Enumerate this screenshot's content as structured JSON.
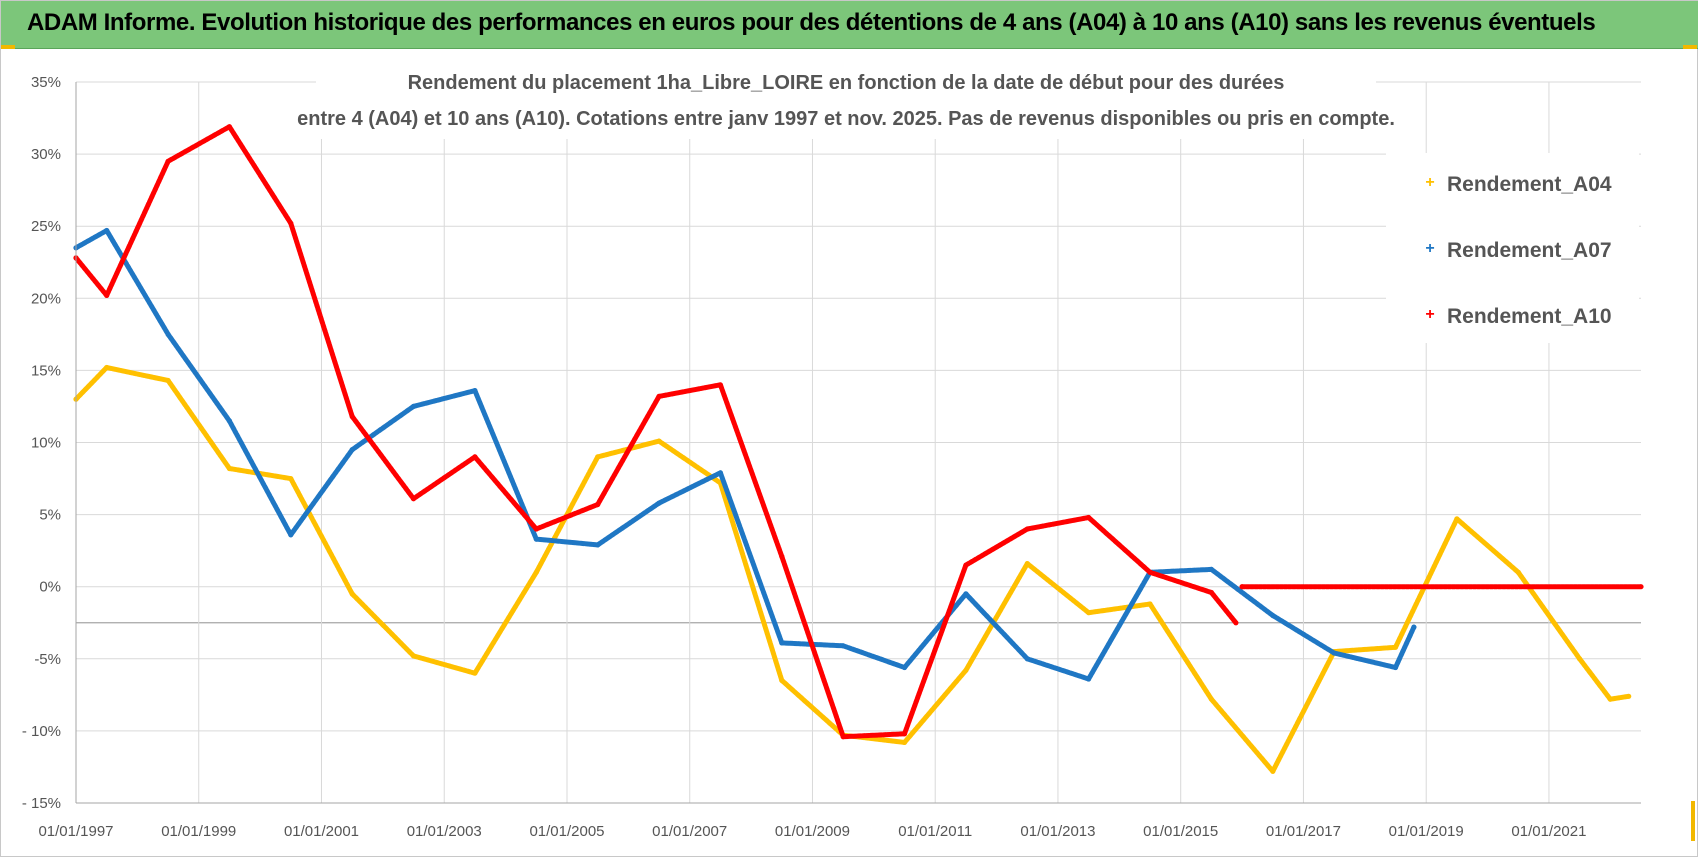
{
  "banner": {
    "title": "ADAM Informe. Evolution historique des performances en euros pour des détentions de 4 ans (A04) à 10 ans (A10) sans les revenus éventuels",
    "color": "#7cc67a"
  },
  "chart_data": {
    "type": "line",
    "title_line1": "Rendement du placement 1ha_Libre_LOIRE en fonction de la date de début pour des durées",
    "title_line2": "entre 4 (A04) et 10 ans (A10). Cotations entre janv 1997 et nov. 2025. Pas de revenus disponibles ou pris en compte.",
    "xlabel": "",
    "ylabel": "",
    "xlim": [
      1997.0,
      2022.5
    ],
    "ylim": [
      -15,
      35
    ],
    "x_ticks": [
      {
        "value": 1997,
        "label": "01/01/1997"
      },
      {
        "value": 1999,
        "label": "01/01/1999"
      },
      {
        "value": 2001,
        "label": "01/01/2001"
      },
      {
        "value": 2003,
        "label": "01/01/2003"
      },
      {
        "value": 2005,
        "label": "01/01/2005"
      },
      {
        "value": 2007,
        "label": "01/01/2007"
      },
      {
        "value": 2009,
        "label": "01/01/2009"
      },
      {
        "value": 2011,
        "label": "01/01/2011"
      },
      {
        "value": 2013,
        "label": "01/01/2013"
      },
      {
        "value": 2015,
        "label": "01/01/2015"
      },
      {
        "value": 2017,
        "label": "01/01/2017"
      },
      {
        "value": 2019,
        "label": "01/01/2019"
      },
      {
        "value": 2021,
        "label": "01/01/2021"
      }
    ],
    "y_ticks": [
      {
        "value": 35,
        "label": "35%"
      },
      {
        "value": 30,
        "label": "30%"
      },
      {
        "value": 25,
        "label": "25%"
      },
      {
        "value": 20,
        "label": "20%"
      },
      {
        "value": 15,
        "label": "15%"
      },
      {
        "value": 10,
        "label": "10%"
      },
      {
        "value": 5,
        "label": "5%"
      },
      {
        "value": 0,
        "label": "0%"
      },
      {
        "value": -5,
        "label": "-5%"
      },
      {
        "value": -10,
        "label": "- 10%"
      },
      {
        "value": -15,
        "label": "- 15%"
      }
    ],
    "extra_gridline": -2.5,
    "series": [
      {
        "name": "Rendement_A04",
        "color": "#ffc000",
        "x": [
          1997.0,
          1997.5,
          1998.5,
          1999.5,
          2000.5,
          2001.5,
          2002.5,
          2003.5,
          2004.5,
          2005.5,
          2006.5,
          2007.5,
          2008.5,
          2009.5,
          2010.5,
          2011.5,
          2012.5,
          2013.5,
          2014.5,
          2015.5,
          2016.5,
          2017.5,
          2018.5,
          2019.5,
          2020.5,
          2021.5,
          2022.0,
          2022.3
        ],
        "y": [
          13.0,
          15.2,
          14.3,
          8.2,
          7.5,
          -0.5,
          -4.8,
          -6.0,
          1.0,
          9.0,
          10.1,
          7.2,
          -6.5,
          -10.3,
          -10.8,
          -5.8,
          1.6,
          -1.8,
          -1.2,
          -7.8,
          -12.8,
          -4.5,
          -4.2,
          4.7,
          1.0,
          -5.0,
          -7.8,
          -7.6
        ]
      },
      {
        "name": "Rendement_A07",
        "color": "#1f77c4",
        "x": [
          1997.0,
          1997.5,
          1998.5,
          1999.5,
          2000.5,
          2001.5,
          2002.5,
          2003.5,
          2004.5,
          2005.5,
          2006.5,
          2007.5,
          2008.5,
          2009.5,
          2010.5,
          2011.5,
          2012.5,
          2013.5,
          2014.5,
          2015.5,
          2016.5,
          2017.5,
          2018.5,
          2018.8
        ],
        "y": [
          23.5,
          24.7,
          17.5,
          11.5,
          3.6,
          9.5,
          12.5,
          13.6,
          3.3,
          2.9,
          5.8,
          7.9,
          -3.9,
          -4.1,
          -5.6,
          -0.5,
          -5.0,
          -6.4,
          1.0,
          1.2,
          -2.0,
          -4.6,
          -5.6,
          -2.8
        ]
      },
      {
        "name": "Rendement_A10",
        "color": "#ff0000",
        "x": [
          1997.0,
          1997.5,
          1998.5,
          1999.5,
          2000.5,
          2001.5,
          2002.5,
          2003.5,
          2004.5,
          2005.5,
          2006.5,
          2007.5,
          2008.5,
          2009.5,
          2010.5,
          2011.5,
          2012.5,
          2013.5,
          2014.5,
          2015.5,
          2015.9
        ],
        "y": [
          22.8,
          20.2,
          29.5,
          31.9,
          25.2,
          11.8,
          6.1,
          9.0,
          4.0,
          5.7,
          13.2,
          14.0,
          2.1,
          -10.4,
          -10.2,
          1.5,
          4.0,
          4.8,
          1.0,
          -0.4,
          -2.5
        ]
      },
      {
        "name": "",
        "color": "#ff0000",
        "x": [
          2016.0,
          2022.5
        ],
        "y": [
          0.0,
          0.0
        ]
      }
    ],
    "legend": {
      "position": "right",
      "entries": [
        "Rendement_A04",
        "Rendement_A07",
        "Rendement_A10"
      ]
    }
  }
}
